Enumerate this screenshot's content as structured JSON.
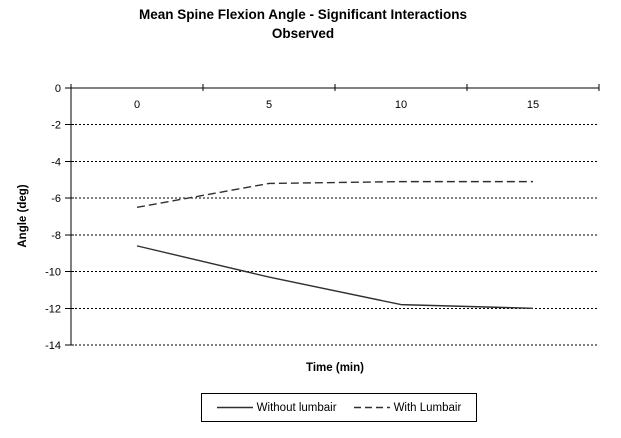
{
  "chart_data": {
    "type": "line",
    "title": "Mean Spine Flexion Angle - Significant Interactions Observed",
    "title_lines": [
      "Mean Spine Flexion Angle - Significant Interactions",
      "Observed"
    ],
    "xlabel": "Time (min)",
    "ylabel": "Angle (deg)",
    "categories": [
      0,
      5,
      10,
      15
    ],
    "yticks": [
      0,
      -2,
      -4,
      -6,
      -8,
      -10,
      -12,
      -14
    ],
    "ylim": [
      0,
      -14
    ],
    "grid": "horizontal-dashed",
    "legend_position": "bottom",
    "series": [
      {
        "name": "Without lumbair",
        "line": "solid",
        "values": [
          -8.6,
          -10.3,
          -11.8,
          -12.0
        ]
      },
      {
        "name": "With Lumbair",
        "line": "dashed",
        "values": [
          -6.5,
          -5.2,
          -5.1,
          -5.1
        ]
      }
    ],
    "colors": {
      "background": "#ffffff",
      "line": "#303030",
      "grid": "#000000",
      "axis": "#000000",
      "text": "#000000"
    }
  }
}
